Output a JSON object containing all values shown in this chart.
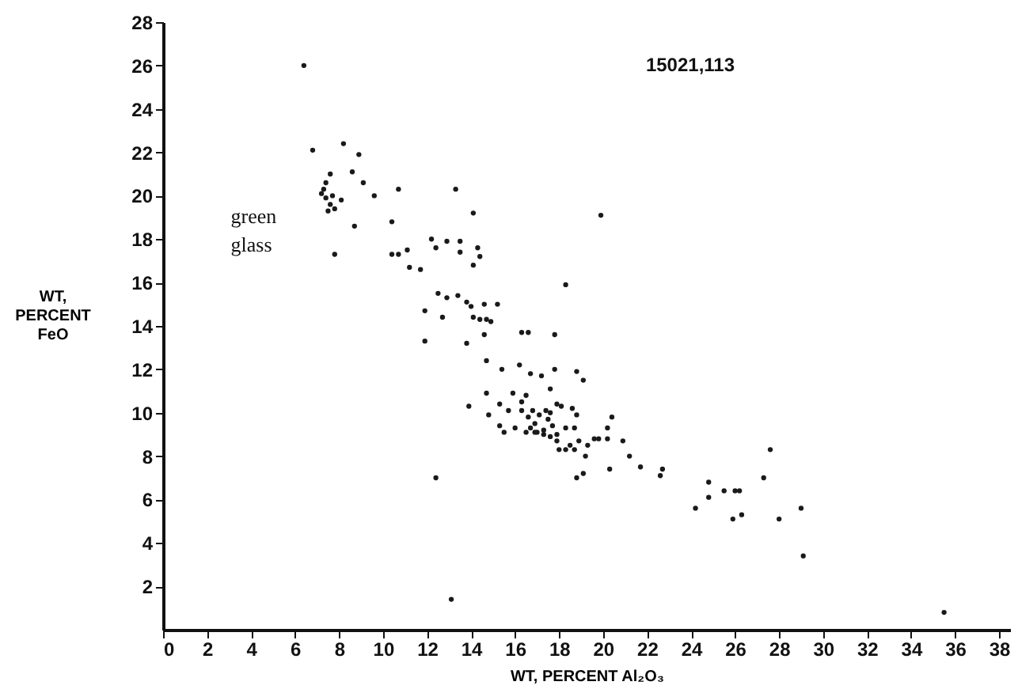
{
  "chart_data": {
    "type": "scatter",
    "xlabel": "WT, PERCENT Al₂O₃",
    "ylabel": "WT, PERCENT FeO",
    "annotations": [
      "15021,113",
      "green glass"
    ],
    "xlim": [
      0,
      38.5
    ],
    "ylim": [
      0,
      28
    ],
    "xticks": [
      0,
      2,
      4,
      6,
      8,
      10,
      12,
      14,
      16,
      18,
      20,
      22,
      24,
      26,
      28,
      30,
      32,
      34,
      36,
      38
    ],
    "yticks": [
      2,
      4,
      6,
      8,
      10,
      12,
      14,
      16,
      18,
      20,
      22,
      24,
      26,
      28
    ],
    "grid": false,
    "marker": "circle",
    "series": [
      {
        "color": "#1a1a1a",
        "x": [
          6.4,
          6.8,
          8.2,
          8.9,
          7.6,
          8.6,
          7.4,
          9.1,
          9.6,
          10.7,
          7.2,
          7.4,
          7.6,
          7.7,
          7.8,
          7.5,
          8.1,
          7.3,
          8.7,
          7.8,
          10.4,
          10.4,
          10.7,
          11.1,
          11.2,
          11.7,
          12.2,
          12.4,
          12.5,
          11.9,
          12.7,
          11.9,
          13.3,
          14.1,
          12.9,
          13.5,
          13.5,
          14.3,
          14.4,
          14.1,
          18.3,
          12.9,
          13.4,
          13.8,
          14.0,
          14.6,
          15.2,
          14.1,
          14.4,
          14.7,
          14.9,
          14.6,
          13.8,
          16.3,
          16.6,
          17.8,
          14.7,
          15.4,
          16.2,
          16.7,
          17.2,
          17.8,
          14.7,
          13.9,
          12.4,
          18.8,
          19.1,
          15.9,
          16.5,
          17.6,
          15.3,
          15.7,
          16.3,
          16.3,
          14.8,
          16.8,
          17.4,
          17.9,
          18.1,
          18.6,
          18.8,
          16.6,
          16.9,
          17.1,
          17.3,
          17.5,
          17.7,
          17.9,
          17.0,
          17.6,
          16.7,
          15.3,
          15.5,
          16.0,
          16.5,
          16.9,
          17.3,
          17.6,
          17.9,
          18.3,
          18.7,
          18.0,
          18.3,
          18.5,
          18.7,
          18.9,
          19.3,
          19.6,
          19.8,
          18.8,
          19.1,
          19.2,
          20.2,
          20.4,
          20.2,
          20.9,
          20.3,
          21.2,
          21.7,
          22.6,
          22.7,
          24.2,
          24.8,
          24.8,
          25.5,
          26.0,
          26.2,
          25.9,
          26.3,
          13.1,
          27.3,
          27.6,
          28.0,
          29.0,
          29.1,
          35.5,
          19.9
        ],
        "values": [
          26.0,
          22.1,
          22.4,
          21.9,
          21.0,
          21.1,
          20.6,
          20.6,
          20.0,
          20.3,
          20.1,
          19.9,
          19.6,
          20.0,
          19.4,
          19.3,
          19.8,
          20.3,
          18.6,
          17.3,
          18.8,
          17.3,
          17.3,
          17.5,
          16.7,
          16.6,
          18.0,
          17.6,
          15.5,
          14.7,
          14.4,
          13.3,
          20.3,
          19.2,
          17.9,
          17.9,
          17.4,
          17.6,
          17.2,
          16.8,
          15.9,
          15.3,
          15.4,
          15.1,
          14.9,
          15.0,
          15.0,
          14.4,
          14.3,
          14.3,
          14.2,
          13.6,
          13.2,
          13.7,
          13.7,
          13.6,
          12.4,
          12.0,
          12.2,
          11.8,
          11.7,
          12.0,
          10.9,
          10.3,
          7.0,
          11.9,
          11.5,
          10.9,
          10.8,
          11.1,
          10.4,
          10.1,
          10.5,
          10.1,
          9.9,
          10.1,
          10.1,
          10.4,
          10.3,
          10.2,
          9.9,
          9.8,
          9.5,
          9.9,
          9.2,
          9.7,
          9.4,
          9.0,
          9.1,
          10.0,
          9.3,
          9.4,
          9.1,
          9.3,
          9.1,
          9.1,
          9.0,
          8.9,
          8.7,
          9.3,
          9.3,
          8.3,
          8.3,
          8.5,
          8.3,
          8.7,
          8.5,
          8.8,
          8.8,
          7.0,
          7.2,
          8.0,
          9.3,
          9.8,
          8.8,
          8.7,
          7.4,
          8.0,
          7.5,
          7.1,
          7.4,
          5.6,
          6.8,
          6.1,
          6.4,
          6.4,
          6.4,
          5.1,
          5.3,
          1.4,
          7.0,
          8.3,
          5.1,
          5.6,
          3.4,
          0.8,
          19.1
        ]
      }
    ]
  }
}
